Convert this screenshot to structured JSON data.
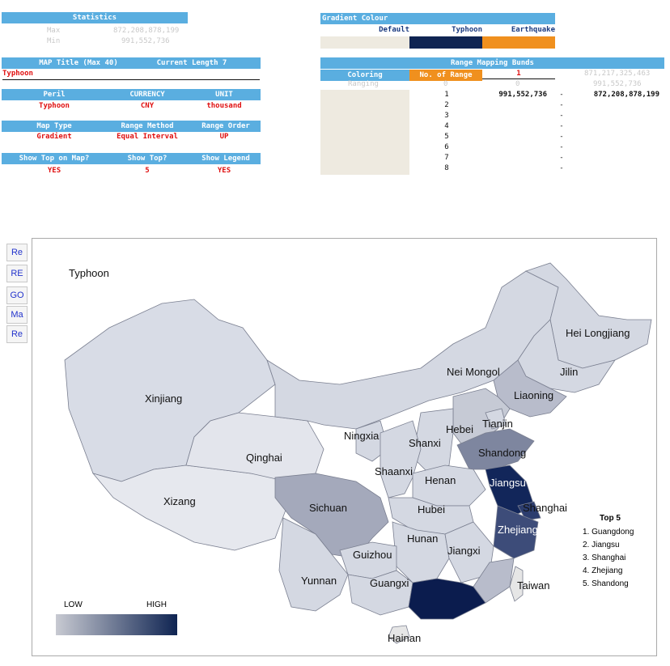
{
  "statistics": {
    "header": "Statistics",
    "max_label": "Max",
    "max_value": "872,208,878,199",
    "min_label": "Min",
    "min_value": "991,552,736"
  },
  "map_title": {
    "header": "MAP Title (Max 40)",
    "current_length_label": "Current Length 7",
    "value": "Typhoon"
  },
  "peril_row": {
    "headers": [
      "Peril",
      "CURRENCY",
      "UNIT"
    ],
    "values": [
      "Typhoon",
      "CNY",
      "thousand"
    ]
  },
  "map_type_row": {
    "headers": [
      "Map Type",
      "Range Method",
      "Range Order"
    ],
    "values": [
      "Gradient",
      "Equal Interval",
      "UP"
    ]
  },
  "show_row": {
    "headers": [
      "Show Top on Map?",
      "Show Top?",
      "Show Legend"
    ],
    "values": [
      "YES",
      "5",
      "YES"
    ]
  },
  "gradient_colour": {
    "header": "Gradient Colour",
    "options": [
      "Default",
      "Typhoon",
      "Earthquake"
    ],
    "colors": [
      "#eeeae0",
      "#0f2452",
      "#f0901e"
    ]
  },
  "range_mapping": {
    "header": "Range Mapping Bunds",
    "coloring_label": "Coloring",
    "no_of_range_label": "No. of Range",
    "no_of_range_value": "1",
    "top_value": "871,217,325,463",
    "ranging_label": "Ranging",
    "ranging_from": "0",
    "ranging_to": "0",
    "ranging_right": "991,552,736",
    "rows": [
      {
        "n": "1",
        "from": "991,552,736",
        "dash": "-",
        "to": "872,208,878,199"
      },
      {
        "n": "2",
        "from": "",
        "dash": "-",
        "to": ""
      },
      {
        "n": "3",
        "from": "",
        "dash": "-",
        "to": ""
      },
      {
        "n": "4",
        "from": "",
        "dash": "-",
        "to": ""
      },
      {
        "n": "5",
        "from": "",
        "dash": "-",
        "to": ""
      },
      {
        "n": "6",
        "from": "",
        "dash": "-",
        "to": ""
      },
      {
        "n": "7",
        "from": "",
        "dash": "-",
        "to": ""
      },
      {
        "n": "8",
        "from": "",
        "dash": "-",
        "to": ""
      }
    ]
  },
  "side_buttons": [
    "Re",
    "RE",
    "GO",
    "Ma",
    "Re"
  ],
  "map": {
    "title": "Typhoon",
    "legend_low": "LOW",
    "legend_high": "HIGH",
    "top5_title": "Top 5",
    "top5": [
      "1. Guangdong",
      "2. Jiangsu",
      "3. Shanghai",
      "4. Zhejiang",
      "5. Shandong"
    ],
    "provinces": {
      "heilongjiang": "Hei Longjiang",
      "jilin": "Jilin",
      "neimongol": "Nei Mongol",
      "liaoning": "Liaoning",
      "xinjiang": "Xinjiang",
      "hebei": "Hebei",
      "tianjin": "Tianjin",
      "ningxia": "Ningxia",
      "shanxi": "Shanxi",
      "qinghai": "Qinghai",
      "shandong": "Shandong",
      "shaanxi": "Shaanxi",
      "henan": "Henan",
      "jiangsu": "Jiangsu",
      "xizang": "Xizang",
      "sichuan": "Sichuan",
      "hubei": "Hubei",
      "shanghai": "Shanghai",
      "zhejiang": "Zhejiang",
      "hunan": "Hunan",
      "guizhou": "Guizhou",
      "jiangxi": "Jiangxi",
      "yunnan": "Yunnan",
      "guangxi": "Guangxi",
      "taiwan": "Taiwan",
      "hainan": "Hainan"
    }
  }
}
